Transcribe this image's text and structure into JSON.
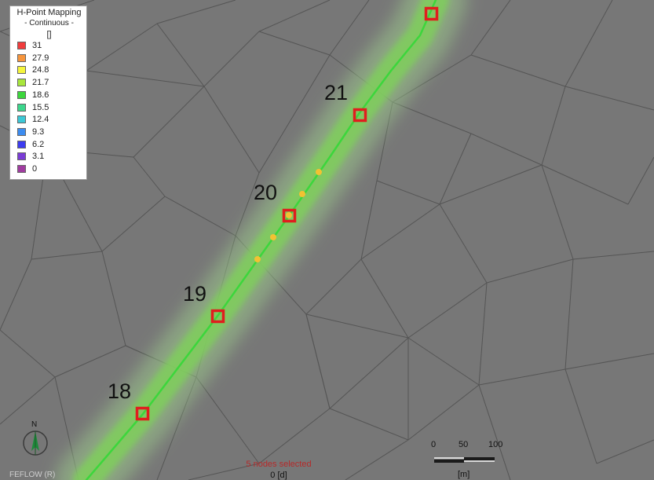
{
  "legend": {
    "title": "H-Point Mapping",
    "subtitle": "- Continuous -",
    "unit": "[]",
    "items": [
      {
        "label": "31",
        "color": "#f03c3c"
      },
      {
        "label": "27.9",
        "color": "#f7953c"
      },
      {
        "label": "24.8",
        "color": "#f5f53c"
      },
      {
        "label": "21.7",
        "color": "#a8e63c"
      },
      {
        "label": "18.6",
        "color": "#3cd63c"
      },
      {
        "label": "15.5",
        "color": "#3cd68c"
      },
      {
        "label": "12.4",
        "color": "#3cc8d6"
      },
      {
        "label": "9.3",
        "color": "#3c8cf0"
      },
      {
        "label": "6.2",
        "color": "#3c3cf0"
      },
      {
        "label": "3.1",
        "color": "#7a3cd6"
      },
      {
        "label": "0",
        "color": "#a03ca0"
      }
    ]
  },
  "nodes": [
    {
      "label": "18"
    },
    {
      "label": "19"
    },
    {
      "label": "20"
    },
    {
      "label": "21"
    }
  ],
  "status": {
    "selection": "5 nodes selected",
    "time": "0 [d]",
    "selection_color": "#b52a2a"
  },
  "compass": {
    "label": "N"
  },
  "scale_bar": {
    "ticks": [
      "0",
      "50",
      "100"
    ],
    "unit": "[m]"
  },
  "footer": {
    "brand": "FEFLOW (R)"
  },
  "colors": {
    "background": "#777777",
    "mesh": "#555555",
    "river": "#3cd63c",
    "marker": "#e01e1e",
    "node_dot": "#f2c232"
  }
}
